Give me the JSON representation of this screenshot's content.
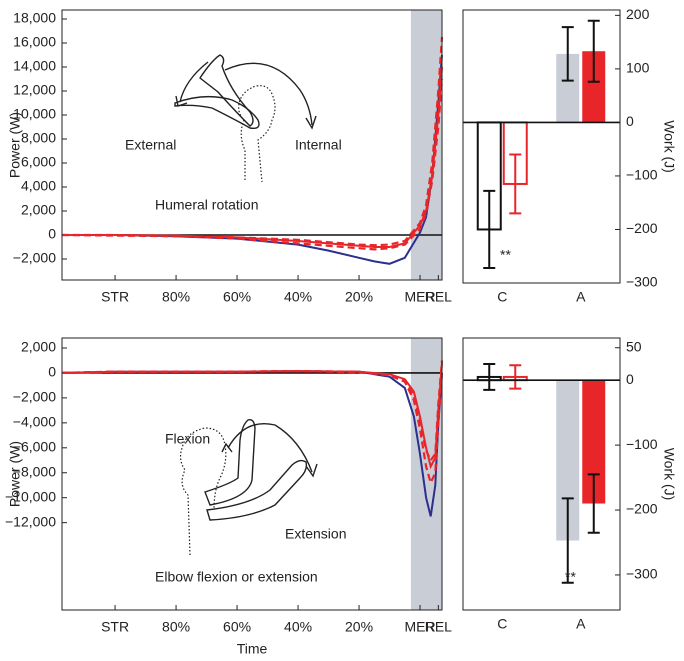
{
  "chart_data": [
    {
      "type": "line",
      "ylabel": "Power (W)",
      "x": [
        -0.174,
        0,
        0.2,
        0.4,
        0.6,
        0.7,
        0.8,
        0.85,
        0.9,
        0.95,
        1.0,
        1.02,
        1.04,
        1.06,
        1.072
      ],
      "xlim": [
        -0.174,
        1.072
      ],
      "xticks": [
        {
          "value": 0,
          "label": "STR"
        },
        {
          "value": 0.2,
          "label": "80%"
        },
        {
          "value": 0.4,
          "label": "60%"
        },
        {
          "value": 0.6,
          "label": "40%"
        },
        {
          "value": 0.8,
          "label": "20%"
        },
        {
          "value": 1.0,
          "label": "MER"
        },
        {
          "value": 1.06,
          "label": "REL"
        }
      ],
      "ylim": [
        -3750,
        18750
      ],
      "yticks": [
        {
          "value": -2000,
          "label": "−2,000"
        },
        0,
        {
          "value": 2000,
          "label": "2,000"
        },
        {
          "value": 4000,
          "label": "4,000"
        },
        {
          "value": 6000,
          "label": "6,000"
        },
        {
          "value": 8000,
          "label": "8,000"
        },
        {
          "value": 10000,
          "label": "10,000"
        },
        {
          "value": 12000,
          "label": "12,000"
        },
        {
          "value": 14000,
          "label": "14,000"
        },
        {
          "value": 16000,
          "label": "16,000"
        },
        {
          "value": 18000,
          "label": "18,000"
        }
      ],
      "shade": [
        0.97,
        1.072
      ],
      "hline": 0,
      "series": [
        {
          "color": "#2b2f8e",
          "dashed": false,
          "values": [
            0,
            0,
            -100,
            -300,
            -800,
            -1300,
            -1900,
            -2200,
            -2400,
            -1900,
            200,
            1500,
            5000,
            11000,
            15000
          ]
        },
        {
          "color": "#e8262a",
          "dashed": true,
          "values": [
            0,
            -50,
            -100,
            -200,
            -400,
            -600,
            -800,
            -850,
            -800,
            -500,
            1000,
            2500,
            6000,
            12000,
            16500
          ]
        },
        {
          "color": "#e8262a",
          "dashed": true,
          "values": [
            0,
            0,
            -100,
            -300,
            -700,
            -900,
            -1100,
            -1200,
            -1100,
            -800,
            500,
            1800,
            4500,
            9000,
            13000
          ]
        },
        {
          "color": "#e8262a",
          "dashed": false,
          "values": [
            0,
            0,
            -50,
            -200,
            -500,
            -700,
            -900,
            -1000,
            -1000,
            -700,
            800,
            2000,
            5000,
            10000,
            14000
          ]
        }
      ],
      "annotations": [
        "External",
        "Internal",
        "Humeral rotation"
      ]
    },
    {
      "type": "bar",
      "ylabel": "Work (J)",
      "categories": [
        "C",
        "A"
      ],
      "ylim": [
        -300,
        210
      ],
      "yticks": [
        {
          "value": -300,
          "label": "−300"
        },
        {
          "value": -200,
          "label": "−200"
        },
        {
          "value": -100,
          "label": "−100"
        },
        0,
        100,
        200
      ],
      "hline": 0,
      "series": [
        {
          "colors": [
            "#111111",
            "#c9cdd6"
          ],
          "filled": [
            false,
            true
          ],
          "values": [
            -200,
            128
          ],
          "errors": [
            72,
            50
          ]
        },
        {
          "colors": [
            "#e8262a",
            "#e8262a"
          ],
          "filled": [
            false,
            true
          ],
          "values": [
            -115,
            133
          ],
          "errors": [
            55,
            57
          ]
        }
      ],
      "annotations": [
        "**"
      ]
    },
    {
      "type": "line",
      "ylabel": "Power (W)",
      "xlabel": "Time",
      "x": [
        -0.174,
        0,
        0.2,
        0.4,
        0.6,
        0.8,
        0.9,
        0.95,
        0.98,
        1.0,
        1.02,
        1.035,
        1.05,
        1.06,
        1.072
      ],
      "xlim": [
        -0.174,
        1.072
      ],
      "xticks": [
        {
          "value": 0,
          "label": "STR"
        },
        {
          "value": 0.2,
          "label": "80%"
        },
        {
          "value": 0.4,
          "label": "60%"
        },
        {
          "value": 0.6,
          "label": "40%"
        },
        {
          "value": 0.8,
          "label": "20%"
        },
        {
          "value": 1.0,
          "label": "MER"
        },
        {
          "value": 1.06,
          "label": "REL"
        }
      ],
      "ylim": [
        -19000,
        2800
      ],
      "yticks": [
        {
          "value": -12000,
          "label": "−12,000"
        },
        {
          "value": -10000,
          "label": "−10,000"
        },
        {
          "value": -8000,
          "label": "−8,000"
        },
        {
          "value": -6000,
          "label": "−6,000"
        },
        {
          "value": -4000,
          "label": "−4,000"
        },
        {
          "value": -2000,
          "label": "−2,000"
        },
        0,
        {
          "value": 2000,
          "label": "2,000"
        }
      ],
      "shade": [
        0.97,
        1.072
      ],
      "hline": 0,
      "series": [
        {
          "color": "#2b2f8e",
          "dashed": false,
          "values": [
            0,
            100,
            100,
            100,
            150,
            100,
            -300,
            -1200,
            -3500,
            -6500,
            -10000,
            -11500,
            -9000,
            -4000,
            0
          ]
        },
        {
          "color": "#e8262a",
          "dashed": true,
          "values": [
            0,
            100,
            100,
            100,
            150,
            100,
            -200,
            -700,
            -2200,
            -4500,
            -7500,
            -8800,
            -8000,
            -4000,
            0
          ]
        },
        {
          "color": "#e8262a",
          "dashed": true,
          "values": [
            0,
            100,
            100,
            100,
            150,
            50,
            -150,
            -600,
            -1800,
            -3800,
            -6200,
            -7000,
            -6500,
            -2500,
            1000
          ]
        },
        {
          "color": "#e8262a",
          "dashed": false,
          "values": [
            0,
            100,
            100,
            100,
            150,
            100,
            -100,
            -500,
            -1500,
            -3500,
            -6000,
            -7500,
            -6800,
            -3000,
            800
          ]
        }
      ],
      "annotations": [
        "Flexion",
        "Extension",
        "Elbow flexion or extension"
      ]
    },
    {
      "type": "bar",
      "ylabel": "Work (J)",
      "categories": [
        "C",
        "A"
      ],
      "ylim": [
        -354,
        65
      ],
      "yticks": [
        {
          "value": -300,
          "label": "−300"
        },
        {
          "value": -200,
          "label": "−200"
        },
        {
          "value": -100,
          "label": "−100"
        },
        0,
        50
      ],
      "hline": 0,
      "series": [
        {
          "colors": [
            "#111111",
            "#c9cdd6"
          ],
          "filled": [
            false,
            true
          ],
          "values": [
            5,
            -247
          ],
          "errors": [
            20,
            65
          ]
        },
        {
          "colors": [
            "#e8262a",
            "#e8262a"
          ],
          "filled": [
            false,
            true
          ],
          "values": [
            5,
            -190
          ],
          "errors": [
            18,
            45
          ]
        }
      ],
      "annotations": [
        "**"
      ]
    }
  ]
}
